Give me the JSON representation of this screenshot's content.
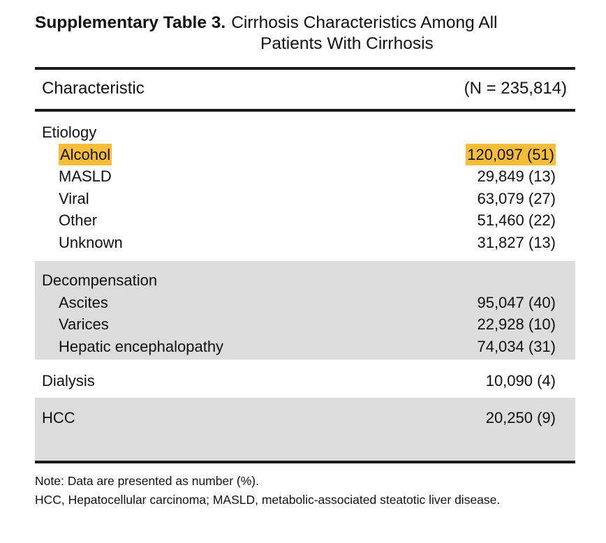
{
  "caption": {
    "label": "Supplementary Table 3.",
    "title_line1": "Cirrhosis Characteristics Among All",
    "title_line2": "Patients With Cirrhosis"
  },
  "header": {
    "characteristic": "Characteristic",
    "n_total": "(N = 235,814)"
  },
  "etiology": {
    "heading": "Etiology",
    "rows": [
      {
        "label": "Alcohol",
        "value": "120,097 (51)"
      },
      {
        "label": "MASLD",
        "value": "29,849 (13)"
      },
      {
        "label": "Viral",
        "value": "63,079 (27)"
      },
      {
        "label": "Other",
        "value": "51,460 (22)"
      },
      {
        "label": "Unknown",
        "value": "31,827 (13)"
      }
    ]
  },
  "decompensation": {
    "heading": "Decompensation",
    "rows": [
      {
        "label": "Ascites",
        "value": "95,047 (40)"
      },
      {
        "label": "Varices",
        "value": "22,928 (10)"
      },
      {
        "label": "Hepatic encephalopathy",
        "value": "74,034 (31)"
      }
    ]
  },
  "dialysis": {
    "label": "Dialysis",
    "value": "10,090 (4)"
  },
  "hcc": {
    "label": "HCC",
    "value": "20,250 (9)"
  },
  "notes": {
    "line1": "Note: Data are presented as number (%).",
    "line2": "HCC, Hepatocellular carcinoma; MASLD, metabolic-associated steatotic liver disease."
  },
  "colors": {
    "highlight": "#f6bd3b",
    "shaded_row": "#dcdcdd",
    "rule": "#1a1a1a"
  }
}
